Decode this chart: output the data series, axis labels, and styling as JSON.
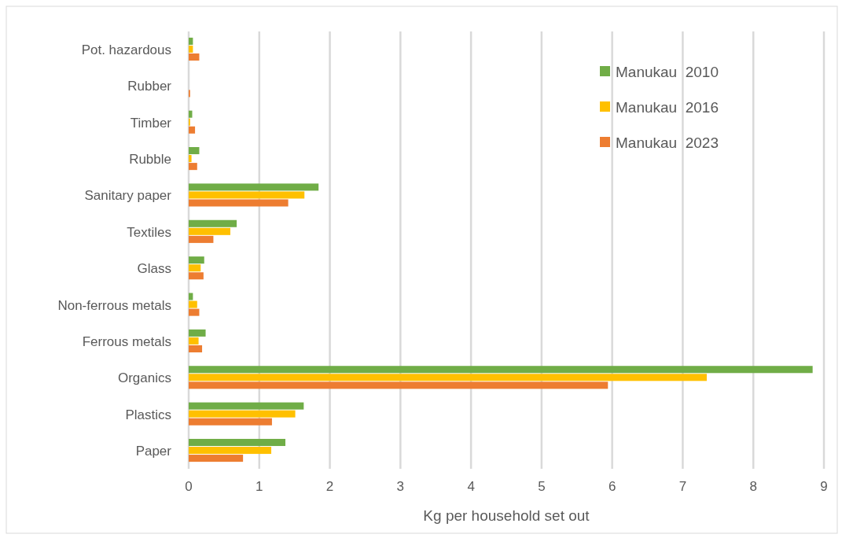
{
  "chart_data": {
    "type": "bar",
    "orientation": "horizontal",
    "xlabel": "Kg per household set out",
    "categories": [
      "Pot. hazardous",
      "Rubber",
      "Timber",
      "Rubble",
      "Sanitary paper",
      "Textiles",
      "Glass",
      "Non-ferrous metals",
      "Ferrous metals",
      "Organics",
      "Plastics",
      "Paper"
    ],
    "series": [
      {
        "name": "Manukau  2010",
        "color": "#70ad47",
        "values": [
          0.06,
          0,
          0.05,
          0.15,
          1.84,
          0.68,
          0.22,
          0.06,
          0.24,
          8.84,
          1.63,
          1.37
        ]
      },
      {
        "name": "Manukau  2016",
        "color": "#ffc000",
        "values": [
          0.06,
          0,
          0.02,
          0.04,
          1.64,
          0.59,
          0.17,
          0.12,
          0.14,
          7.34,
          1.51,
          1.17
        ]
      },
      {
        "name": "Manukau  2023",
        "color": "#ed7d31",
        "values": [
          0.15,
          0.02,
          0.09,
          0.12,
          1.41,
          0.35,
          0.21,
          0.15,
          0.19,
          5.94,
          1.18,
          0.77
        ]
      }
    ],
    "xlim": [
      0,
      9
    ],
    "xticks": [
      0,
      1,
      2,
      3,
      4,
      5,
      6,
      7,
      8,
      9
    ],
    "grid": "x",
    "legend": "top right"
  }
}
